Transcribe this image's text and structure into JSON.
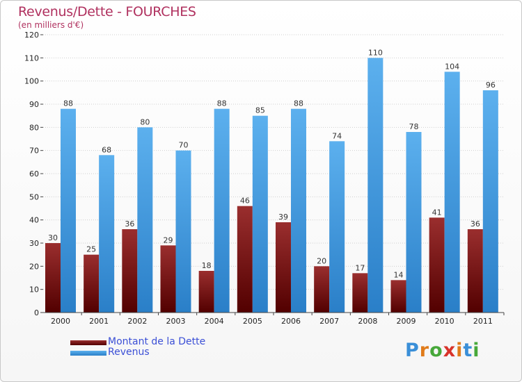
{
  "header": {
    "title": "Revenus/Dette - FOURCHES",
    "subtitle": "(en milliers d'€)"
  },
  "legend": {
    "dette_label": "Montant de la Dette",
    "revenus_label": "Revenus"
  },
  "logo": {
    "text": "Proxiti"
  },
  "colors": {
    "dette": "#7a1a1a",
    "revenus": "#4aa3e6"
  },
  "chart_data": {
    "type": "bar",
    "categories": [
      "2000",
      "2001",
      "2002",
      "2003",
      "2004",
      "2005",
      "2006",
      "2007",
      "2008",
      "2009",
      "2010",
      "2011"
    ],
    "series": [
      {
        "name": "Montant de la Dette",
        "values": [
          30,
          25,
          36,
          29,
          18,
          46,
          39,
          20,
          17,
          14,
          41,
          36
        ]
      },
      {
        "name": "Revenus",
        "values": [
          88,
          68,
          80,
          70,
          88,
          85,
          88,
          74,
          110,
          78,
          104,
          96
        ]
      }
    ],
    "title": "Revenus/Dette - FOURCHES",
    "ylabel": "(en milliers d'€)",
    "ylim": [
      0,
      120
    ],
    "yticks": [
      0,
      10,
      20,
      30,
      40,
      50,
      60,
      70,
      80,
      90,
      100,
      110,
      120
    ],
    "grid": true,
    "legend_position": "bottom-left"
  }
}
